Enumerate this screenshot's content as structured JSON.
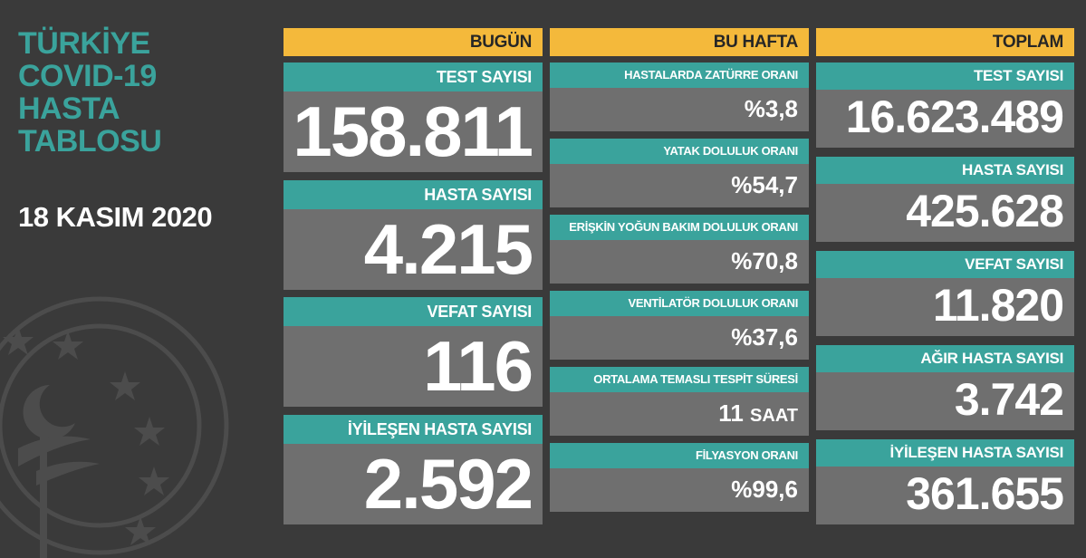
{
  "title_lines": [
    "TÜRKİYE",
    "COVID-19",
    "HASTA",
    "TABLOSU"
  ],
  "date": "18 KASIM 2020",
  "colors": {
    "teal": "#3aa39c",
    "yellow": "#f4b93b",
    "card": "#6f6f6f",
    "background": "#3a3a3a"
  },
  "emblem": {
    "icon": "ministry-of-health-emblem"
  },
  "today": {
    "header": "BUGÜN",
    "cards": [
      {
        "label": "TEST SAYISI",
        "value": "158.811"
      },
      {
        "label": "HASTA SAYISI",
        "value": "4.215"
      },
      {
        "label": "VEFAT SAYISI",
        "value": "116"
      },
      {
        "label": "İYİLEŞEN HASTA SAYISI",
        "value": "2.592"
      }
    ]
  },
  "week": {
    "header": "BU HAFTA",
    "cards": [
      {
        "label": "HASTALARDA ZATÜRRE ORANI",
        "value": "%3,8",
        "unit": ""
      },
      {
        "label": "YATAK DOLULUK ORANI",
        "value": "%54,7",
        "unit": ""
      },
      {
        "label": "ERİŞKİN YOĞUN BAKIM DOLULUK ORANI",
        "value": "%70,8",
        "unit": ""
      },
      {
        "label": "VENTİLATÖR DOLULUK ORANI",
        "value": "%37,6",
        "unit": ""
      },
      {
        "label": "ORTALAMA TEMASLI TESPİT SÜRESİ",
        "value": "11",
        "unit": "SAAT"
      },
      {
        "label": "FİLYASYON ORANI",
        "value": "%99,6",
        "unit": ""
      }
    ]
  },
  "total": {
    "header": "TOPLAM",
    "cards": [
      {
        "label": "TEST SAYISI",
        "value": "16.623.489"
      },
      {
        "label": "HASTA SAYISI",
        "value": "425.628"
      },
      {
        "label": "VEFAT SAYISI",
        "value": "11.820"
      },
      {
        "label": "AĞIR HASTA SAYISI",
        "value": "3.742"
      },
      {
        "label": "İYİLEŞEN HASTA SAYISI",
        "value": "361.655"
      }
    ]
  }
}
